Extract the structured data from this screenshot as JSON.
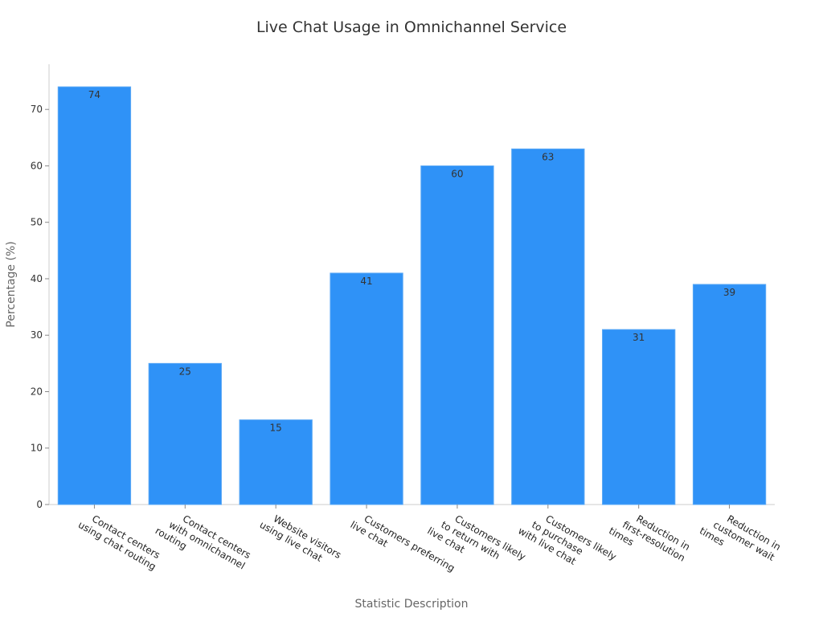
{
  "chart_data": {
    "type": "bar",
    "title": "Live Chat Usage in Omnichannel Service",
    "xlabel": "Statistic Description",
    "ylabel": "Percentage (%)",
    "ylim": [
      0,
      78
    ],
    "yticks": [
      0,
      10,
      20,
      30,
      40,
      50,
      60,
      70
    ],
    "grid": false,
    "bar_color": "#2f92f7",
    "categories": [
      [
        "Contact centers",
        "using chat routing"
      ],
      [
        "Contact centers",
        "with omnichannel",
        "routing"
      ],
      [
        "Website visitors",
        "using live chat"
      ],
      [
        "Customers preferring",
        "live chat"
      ],
      [
        "Customers likely",
        "to return with",
        "live chat"
      ],
      [
        "Customers likely",
        "to purchase",
        "with live chat"
      ],
      [
        "Reduction in",
        "first-resolution",
        "times"
      ],
      [
        "Reduction in",
        "customer wait",
        "times"
      ]
    ],
    "values": [
      74,
      25,
      15,
      41,
      60,
      63,
      31,
      39
    ]
  }
}
